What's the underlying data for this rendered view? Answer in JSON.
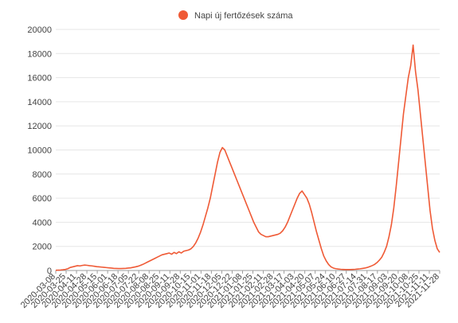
{
  "chart_data": {
    "type": "line",
    "legend": {
      "label": "Napi új fertőzések száma",
      "color": "#ef5a36",
      "position": "top-center"
    },
    "y_axis": {
      "min": 0,
      "max": 20000,
      "ticks": [
        0,
        2000,
        4000,
        6000,
        8000,
        10000,
        12000,
        14000,
        16000,
        18000,
        20000
      ]
    },
    "grid": true,
    "x_tick_labels": [
      "2020-03-08",
      "2020-03-25",
      "2020-04-11",
      "2020-04-28",
      "2020-05-15",
      "2020-06-01",
      "2020-06-18",
      "2020-07-05",
      "2020-07-22",
      "2020-08-08",
      "2020-08-25",
      "2020-09-11",
      "2020-09-28",
      "2020-10-15",
      "2020-11-01",
      "2020-11-18",
      "2020-12-05",
      "2020-12-22",
      "2021-01-08",
      "2021-01-25",
      "2021-02-11",
      "2021-02-28",
      "2021-03-17",
      "2021-04-03",
      "2021-04-20",
      "2021-05-07",
      "2021-05-24",
      "2021-06-10",
      "2021-06-27",
      "2021-07-14",
      "2021-07-31",
      "2021-08-17",
      "2021-09-03",
      "2021-09-20",
      "2021-10-08",
      "2021-10-25",
      "2021-11-11",
      "2021-11-28"
    ],
    "series": [
      {
        "name": "Napi új fertőzések száma",
        "color": "#ef5a36",
        "values": [
          20,
          30,
          40,
          60,
          90,
          150,
          250,
          300,
          350,
          400,
          380,
          420,
          450,
          430,
          400,
          380,
          350,
          320,
          300,
          280,
          260,
          240,
          220,
          200,
          180,
          170,
          160,
          160,
          170,
          180,
          200,
          220,
          260,
          300,
          350,
          420,
          500,
          600,
          700,
          800,
          900,
          1000,
          1100,
          1200,
          1300,
          1350,
          1400,
          1450,
          1350,
          1500,
          1400,
          1550,
          1450,
          1600,
          1650,
          1700,
          1800,
          2000,
          2300,
          2700,
          3200,
          3800,
          4500,
          5200,
          6000,
          7000,
          8000,
          9000,
          9800,
          10200,
          10000,
          9500,
          9000,
          8500,
          8000,
          7500,
          7000,
          6500,
          6000,
          5500,
          5000,
          4500,
          4000,
          3600,
          3200,
          3000,
          2900,
          2800,
          2800,
          2850,
          2900,
          2950,
          3000,
          3100,
          3300,
          3600,
          4000,
          4500,
          5000,
          5500,
          6000,
          6400,
          6600,
          6300,
          6000,
          5500,
          4800,
          4000,
          3200,
          2500,
          1800,
          1200,
          800,
          500,
          300,
          200,
          150,
          120,
          100,
          90,
          80,
          80,
          80,
          90,
          100,
          120,
          140,
          170,
          200,
          250,
          320,
          400,
          500,
          650,
          850,
          1100,
          1500,
          2000,
          2800,
          3800,
          5200,
          7000,
          9000,
          11000,
          13000,
          14500,
          16000,
          17000,
          18700,
          16500,
          15000,
          13000,
          11000,
          9000,
          7000,
          5000,
          3500,
          2500,
          1800,
          1500
        ]
      }
    ]
  }
}
